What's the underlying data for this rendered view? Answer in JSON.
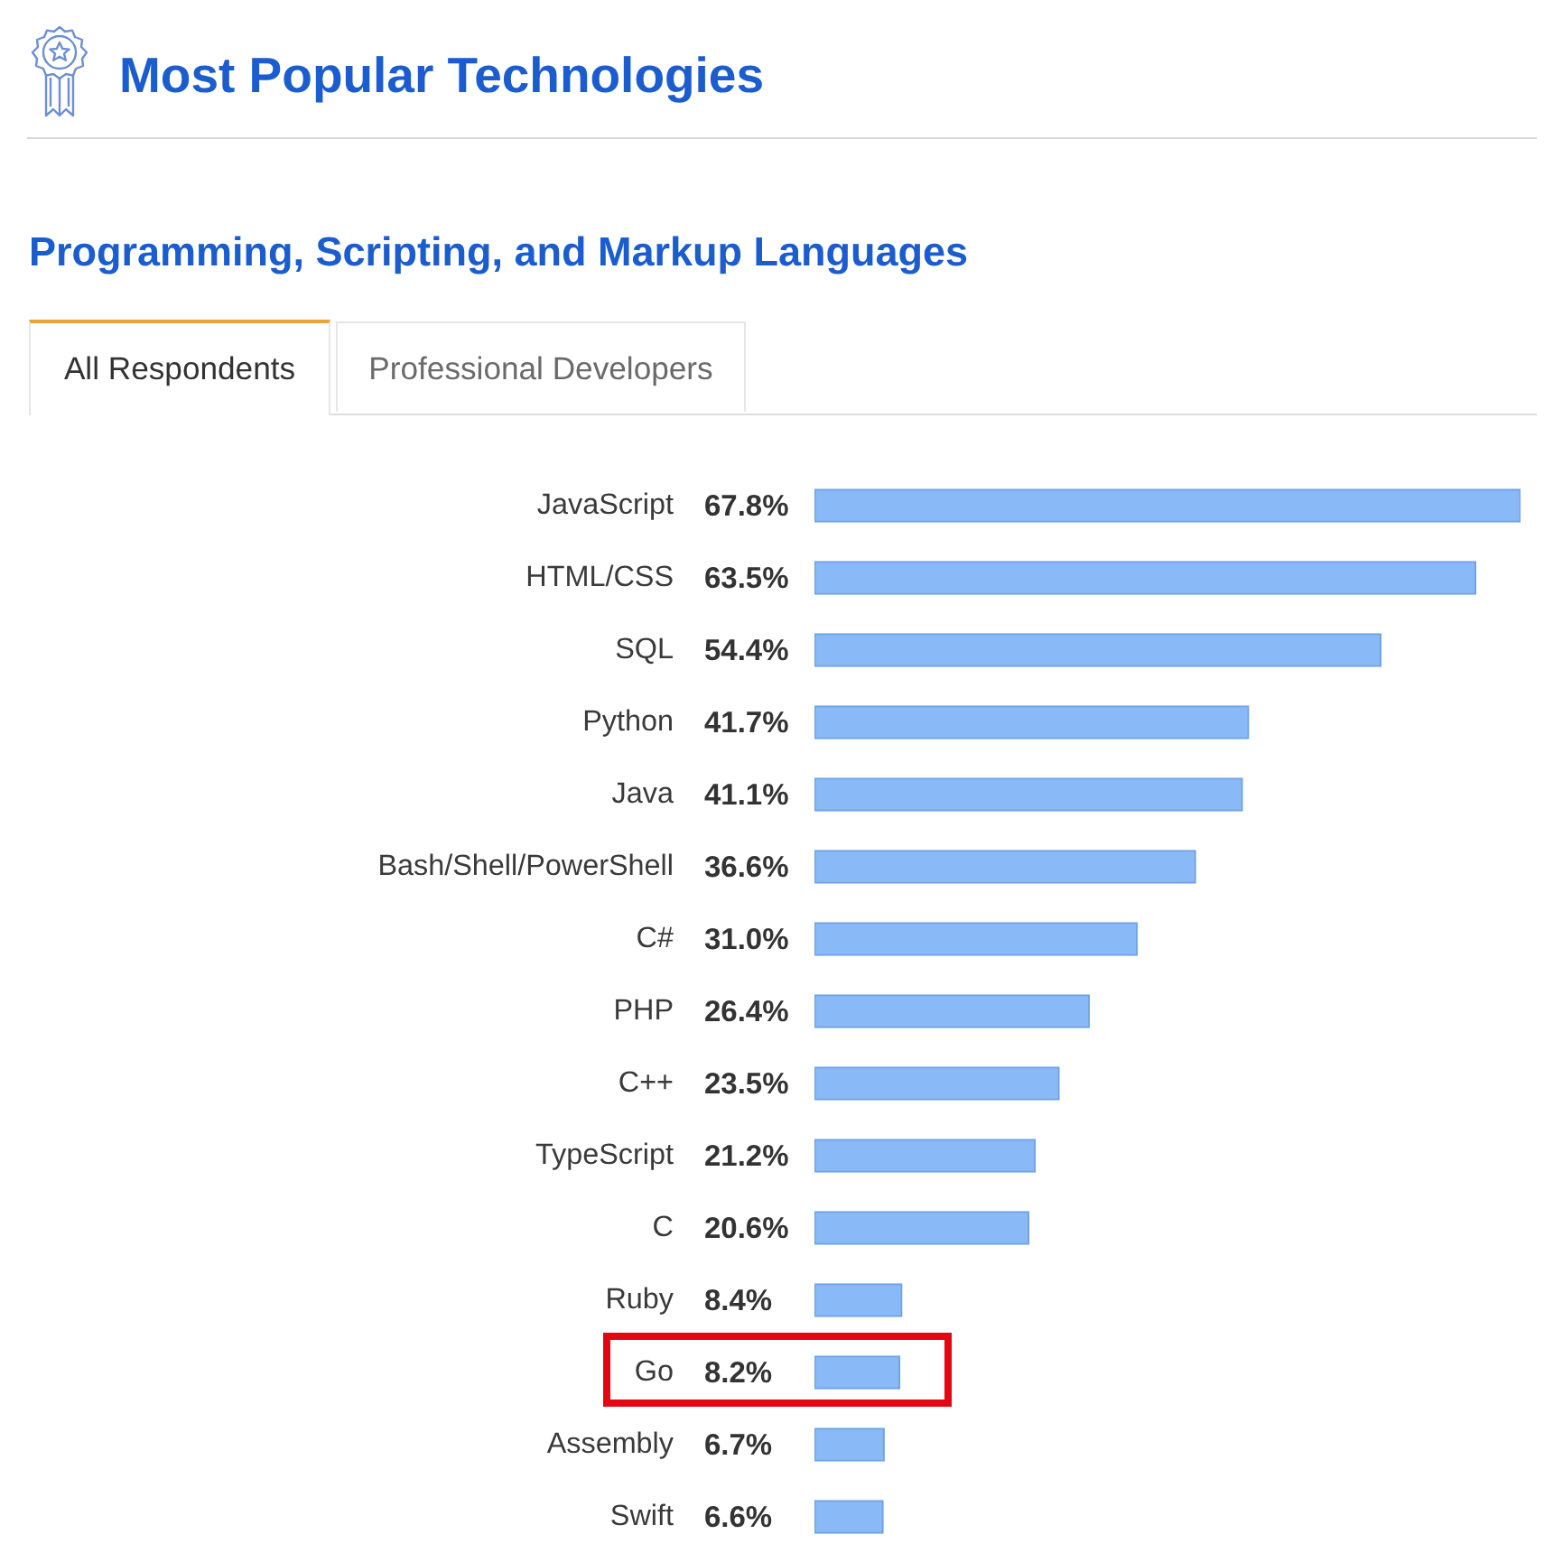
{
  "chart_data": {
    "type": "bar",
    "orientation": "horizontal",
    "title": "Most Popular Technologies",
    "subtitle": "Programming, Scripting, and Markup Languages",
    "annotations": [
      "All Respondents",
      "Professional Developers"
    ],
    "categories": [
      "JavaScript",
      "HTML/CSS",
      "SQL",
      "Python",
      "Java",
      "Bash/Shell/PowerShell",
      "C#",
      "PHP",
      "C++",
      "TypeScript",
      "C",
      "Ruby",
      "Go",
      "Assembly",
      "Swift"
    ],
    "values": [
      67.8,
      63.5,
      54.4,
      41.7,
      41.1,
      36.6,
      31.0,
      26.4,
      23.5,
      21.2,
      20.6,
      8.4,
      8.2,
      6.7,
      6.6
    ],
    "value_labels": [
      "67.8%",
      "63.5%",
      "54.4%",
      "41.7%",
      "41.1%",
      "36.6%",
      "31.0%",
      "26.4%",
      "23.5%",
      "21.2%",
      "20.6%",
      "8.4%",
      "8.2%",
      "6.7%",
      "6.6%"
    ],
    "color": "#8ab9f7",
    "tick_labels": "y"
  }
}
